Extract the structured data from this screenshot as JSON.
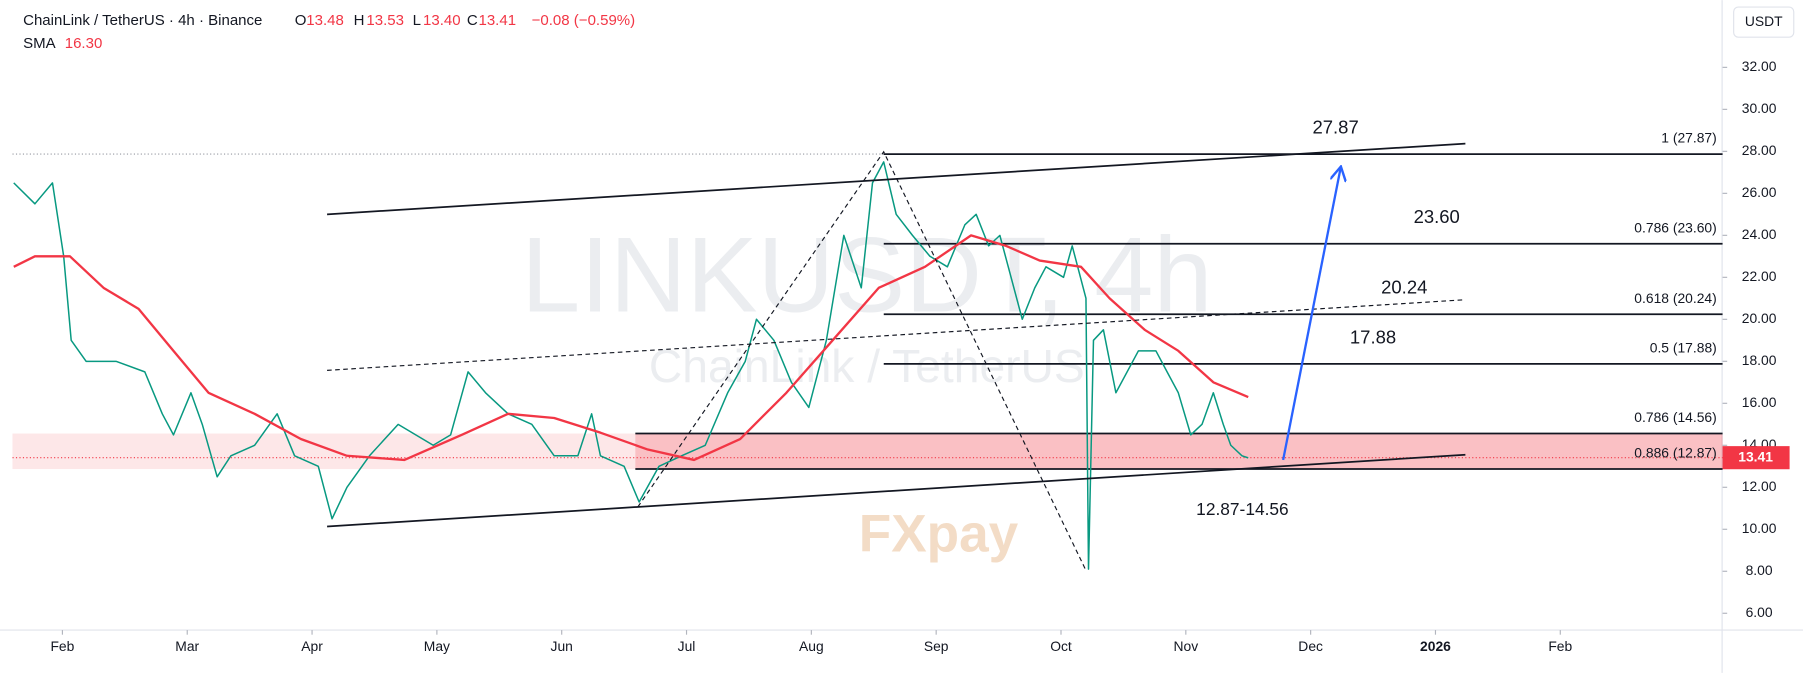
{
  "chart_data": {
    "type": "line",
    "header": {
      "symbol": "ChainLink / TetherUS · 4h · Binance",
      "open_label": "O",
      "open": "13.48",
      "high_label": "H",
      "high": "13.53",
      "low_label": "L",
      "low": "13.40",
      "close_label": "C",
      "close": "13.41",
      "change": "−0.08 (−0.59%)",
      "sma_value": "16.30"
    },
    "currency": "USDT",
    "watermark": "LINKUSDT, 4h",
    "watermark_sub": "ChainLink / TetherUS",
    "logo": "FXpay",
    "last_price": {
      "value": 13.41,
      "label": "13.41"
    },
    "xlim": [
      -0.4,
      13.3
    ],
    "ylim": [
      5.2,
      35.2
    ],
    "xticks": [
      {
        "value": 0,
        "label": "Feb"
      },
      {
        "value": 1,
        "label": "Mar"
      },
      {
        "value": 2,
        "label": "Apr"
      },
      {
        "value": 3,
        "label": "May"
      },
      {
        "value": 4,
        "label": "Jun"
      },
      {
        "value": 5,
        "label": "Jul"
      },
      {
        "value": 6,
        "label": "Aug"
      },
      {
        "value": 7,
        "label": "Sep"
      },
      {
        "value": 8,
        "label": "Oct"
      },
      {
        "value": 9,
        "label": "Nov"
      },
      {
        "value": 10,
        "label": "Dec"
      },
      {
        "value": 11,
        "label": "2026"
      },
      {
        "value": 12,
        "label": "Feb"
      }
    ],
    "yticks": [
      {
        "value": 6,
        "label": "6.00"
      },
      {
        "value": 8,
        "label": "8.00"
      },
      {
        "value": 10,
        "label": "10.00"
      },
      {
        "value": 12,
        "label": "12.00"
      },
      {
        "value": 14,
        "label": "14.00"
      },
      {
        "value": 16,
        "label": "16.00"
      },
      {
        "value": 18,
        "label": "18.00"
      },
      {
        "value": 20,
        "label": "20.00"
      },
      {
        "value": 22,
        "label": "22.00"
      },
      {
        "value": 24,
        "label": "24.00"
      },
      {
        "value": 26,
        "label": "26.00"
      },
      {
        "value": 28,
        "label": "28.00"
      },
      {
        "value": 30,
        "label": "30.00"
      },
      {
        "value": 32,
        "label": "32.00"
      }
    ],
    "series": [
      {
        "color": "#089981",
        "x": [
          -0.39,
          -0.22,
          -0.08,
          0.01,
          0.07,
          0.19,
          0.43,
          0.66,
          0.8,
          0.89,
          1.03,
          1.12,
          1.24,
          1.35,
          1.54,
          1.72,
          1.86,
          2.05,
          2.16,
          2.28,
          2.46,
          2.69,
          2.97,
          3.11,
          3.25,
          3.39,
          3.57,
          3.76,
          3.94,
          4.13,
          4.24,
          4.31,
          4.5,
          4.62,
          4.78,
          4.96,
          5.15,
          5.33,
          5.47,
          5.56,
          5.7,
          5.84,
          5.98,
          6.12,
          6.26,
          6.4,
          6.49,
          6.58,
          6.68,
          6.81,
          6.95,
          7.09,
          7.23,
          7.32,
          7.42,
          7.51,
          7.6,
          7.69,
          7.79,
          7.88,
          8.02,
          8.09,
          8.2,
          8.22,
          8.26,
          8.34,
          8.44,
          8.62,
          8.76,
          8.85,
          8.94,
          9.04,
          9.13,
          9.22,
          9.3,
          9.36,
          9.45,
          9.5
        ],
        "values": [
          26.5,
          25.5,
          26.5,
          23,
          19,
          18,
          18,
          17.5,
          15.5,
          14.5,
          16.5,
          15,
          12.5,
          13.5,
          14,
          15.5,
          13.5,
          13,
          10.5,
          12,
          13.5,
          15,
          14,
          14.5,
          17.5,
          16.5,
          15.5,
          15,
          13.5,
          13.5,
          15.5,
          13.5,
          13,
          11.3,
          13,
          13.5,
          14,
          16.5,
          18,
          20,
          19,
          17,
          15.8,
          19,
          24,
          21.5,
          26.5,
          27.5,
          25,
          24,
          23,
          22.5,
          24.5,
          25,
          23.5,
          24,
          22,
          20,
          21.5,
          22.5,
          22,
          23.5,
          21,
          8.1,
          19,
          19.5,
          16.5,
          18.5,
          18.5,
          17.5,
          16.5,
          14.5,
          15,
          16.5,
          15,
          14,
          13.5,
          13.4
        ]
      },
      {
        "name": "SMA",
        "color": "#f23645",
        "x": [
          -0.39,
          -0.22,
          0.06,
          0.33,
          0.61,
          0.89,
          1.17,
          1.54,
          1.91,
          2.28,
          2.74,
          3.2,
          3.57,
          3.94,
          4.31,
          4.69,
          5.06,
          5.43,
          5.8,
          6.17,
          6.54,
          6.91,
          7.28,
          7.56,
          7.83,
          8.16,
          8.39,
          8.67,
          8.94,
          9.22,
          9.5
        ],
        "values": [
          22.5,
          23,
          23,
          21.5,
          20.5,
          18.5,
          16.5,
          15.5,
          14.3,
          13.5,
          13.3,
          14.5,
          15.5,
          15.3,
          14.6,
          13.8,
          13.3,
          14.3,
          16.5,
          19,
          21.5,
          22.5,
          24,
          23.5,
          22.8,
          22.5,
          21,
          19.5,
          18.5,
          17,
          16.3
        ]
      }
    ],
    "zone": {
      "low": 12.87,
      "high": 14.56,
      "from": 4.59
    },
    "levels": [
      {
        "value": 27.87,
        "from": 6.58,
        "label": "1 (27.87)",
        "callout": "27.87",
        "callout_x": 10.2
      },
      {
        "value": 23.6,
        "from": 6.58,
        "label": "0.786 (23.60)",
        "callout": "23.60",
        "callout_x": 11.01
      },
      {
        "value": 20.24,
        "from": 6.58,
        "label": "0.618 (20.24)",
        "callout": "20.24",
        "callout_x": 10.75
      },
      {
        "value": 17.88,
        "from": 6.58,
        "label": "0.5 (17.88)",
        "callout": "17.88",
        "callout_x": 10.5
      },
      {
        "value": 14.56,
        "from": 4.59,
        "label": "0.786 (14.56)"
      },
      {
        "value": 12.87,
        "from": 4.59,
        "label": "0.886 (12.87)"
      }
    ],
    "zone_label": "12.87-14.56",
    "trendlines": [
      {
        "x": [
          2.12,
          11.24
        ],
        "values": [
          25.0,
          28.37
        ],
        "dash": false,
        "color": "#131722"
      },
      {
        "x": [
          2.12,
          11.24
        ],
        "values": [
          10.13,
          13.55
        ],
        "dash": false,
        "color": "#131722"
      },
      {
        "x": [
          2.12,
          11.24
        ],
        "values": [
          17.57,
          20.93
        ],
        "dash": true,
        "color": "#131722"
      },
      {
        "x": [
          4.61,
          6.58,
          8.2
        ],
        "values": [
          11.07,
          27.98,
          8.04
        ],
        "dash": true,
        "color": "#131722"
      },
      {
        "x": [
          9.78,
          10.24
        ],
        "values": [
          13.3,
          27.2
        ],
        "dash": false,
        "color": "#2962ff",
        "arrow": true
      }
    ]
  }
}
